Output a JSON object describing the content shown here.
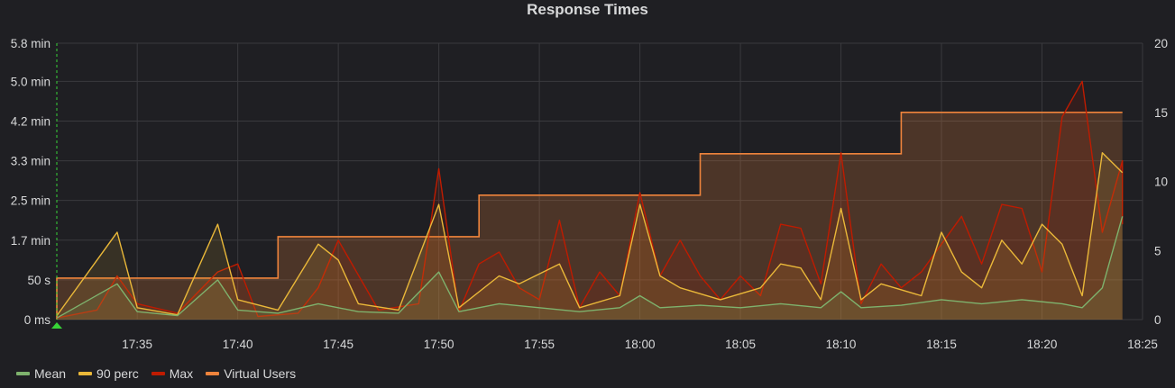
{
  "panel": {
    "title": "Response Times"
  },
  "legend": [
    {
      "label": "Mean",
      "color": "#7eb26d"
    },
    {
      "label": "90 perc",
      "color": "#eab839"
    },
    {
      "label": "Max",
      "color": "#bf1b00"
    },
    {
      "label": "Virtual Users",
      "color": "#ef843c"
    }
  ],
  "chart_data": {
    "type": "line",
    "title": "Response Times",
    "grid": true,
    "legend_position": "bottom-left",
    "x_range": [
      "17:31",
      "18:25"
    ],
    "x_tick_labels": [
      "17:35",
      "17:40",
      "17:45",
      "17:50",
      "17:55",
      "18:00",
      "18:05",
      "18:10",
      "18:15",
      "18:20",
      "18:25"
    ],
    "y_left": {
      "unit": "seconds",
      "range": [
        0,
        348
      ],
      "tick_labels": [
        "0 ms",
        "50 s",
        "1.7 min",
        "2.5 min",
        "3.3 min",
        "4.2 min",
        "5.0 min",
        "5.8 min"
      ],
      "tick_values": [
        0,
        50,
        100,
        150,
        200,
        250,
        300,
        348
      ]
    },
    "y_right": {
      "range": [
        0,
        20
      ],
      "tick_labels": [
        "0",
        "5",
        "10",
        "15",
        "20"
      ],
      "tick_values": [
        0,
        5,
        10,
        15,
        20
      ]
    },
    "series": [
      {
        "name": "Virtual Users",
        "color": "#ef843c",
        "axis": "right",
        "style": "step-area",
        "points": [
          [
            "17:31",
            0
          ],
          [
            "17:31",
            3
          ],
          [
            "17:42",
            3
          ],
          [
            "17:42",
            6
          ],
          [
            "17:52",
            6
          ],
          [
            "17:52",
            9
          ],
          [
            "18:03",
            9
          ],
          [
            "18:03",
            12
          ],
          [
            "18:13",
            12
          ],
          [
            "18:13",
            15
          ],
          [
            "18:24",
            15
          ]
        ]
      },
      {
        "name": "Max",
        "color": "#bf1b00",
        "axis": "left",
        "points": [
          [
            "17:31",
            2
          ],
          [
            "17:33",
            12
          ],
          [
            "17:34",
            55
          ],
          [
            "17:35",
            20
          ],
          [
            "17:37",
            8
          ],
          [
            "17:39",
            60
          ],
          [
            "17:40",
            70
          ],
          [
            "17:41",
            4
          ],
          [
            "17:43",
            8
          ],
          [
            "17:44",
            40
          ],
          [
            "17:45",
            100
          ],
          [
            "17:47",
            12
          ],
          [
            "17:49",
            20
          ],
          [
            "17:50",
            190
          ],
          [
            "17:51",
            10
          ],
          [
            "17:52",
            70
          ],
          [
            "17:53",
            85
          ],
          [
            "17:54",
            40
          ],
          [
            "17:55",
            25
          ],
          [
            "17:56",
            125
          ],
          [
            "17:57",
            15
          ],
          [
            "17:58",
            60
          ],
          [
            "17:59",
            30
          ],
          [
            "18:00",
            160
          ],
          [
            "18:01",
            55
          ],
          [
            "18:02",
            100
          ],
          [
            "18:03",
            55
          ],
          [
            "18:04",
            25
          ],
          [
            "18:05",
            55
          ],
          [
            "18:06",
            30
          ],
          [
            "18:07",
            120
          ],
          [
            "18:08",
            115
          ],
          [
            "18:09",
            45
          ],
          [
            "18:10",
            210
          ],
          [
            "18:11",
            20
          ],
          [
            "18:12",
            70
          ],
          [
            "18:13",
            40
          ],
          [
            "18:14",
            60
          ],
          [
            "18:15",
            95
          ],
          [
            "18:16",
            130
          ],
          [
            "18:17",
            70
          ],
          [
            "18:18",
            145
          ],
          [
            "18:19",
            140
          ],
          [
            "18:20",
            60
          ],
          [
            "18:21",
            255
          ],
          [
            "18:22",
            300
          ],
          [
            "18:23",
            110
          ],
          [
            "18:24",
            200
          ],
          [
            "18:24",
            120
          ]
        ]
      },
      {
        "name": "90 perc",
        "color": "#eab839",
        "axis": "left",
        "points": [
          [
            "17:31",
            5
          ],
          [
            "17:34",
            110
          ],
          [
            "17:35",
            15
          ],
          [
            "17:37",
            6
          ],
          [
            "17:39",
            120
          ],
          [
            "17:40",
            25
          ],
          [
            "17:42",
            12
          ],
          [
            "17:44",
            95
          ],
          [
            "17:45",
            75
          ],
          [
            "17:46",
            20
          ],
          [
            "17:48",
            12
          ],
          [
            "17:50",
            145
          ],
          [
            "17:51",
            15
          ],
          [
            "17:53",
            55
          ],
          [
            "17:54",
            45
          ],
          [
            "17:56",
            70
          ],
          [
            "17:57",
            15
          ],
          [
            "17:59",
            30
          ],
          [
            "18:00",
            145
          ],
          [
            "18:01",
            55
          ],
          [
            "18:02",
            40
          ],
          [
            "18:04",
            25
          ],
          [
            "18:06",
            40
          ],
          [
            "18:07",
            70
          ],
          [
            "18:08",
            65
          ],
          [
            "18:09",
            25
          ],
          [
            "18:10",
            140
          ],
          [
            "18:11",
            25
          ],
          [
            "18:12",
            45
          ],
          [
            "18:14",
            30
          ],
          [
            "18:15",
            110
          ],
          [
            "18:16",
            60
          ],
          [
            "18:17",
            40
          ],
          [
            "18:18",
            100
          ],
          [
            "18:19",
            70
          ],
          [
            "18:20",
            120
          ],
          [
            "18:21",
            95
          ],
          [
            "18:22",
            30
          ],
          [
            "18:23",
            210
          ],
          [
            "18:24",
            185
          ]
        ]
      },
      {
        "name": "Mean",
        "color": "#7eb26d",
        "axis": "left",
        "points": [
          [
            "17:31",
            2
          ],
          [
            "17:34",
            45
          ],
          [
            "17:35",
            10
          ],
          [
            "17:37",
            5
          ],
          [
            "17:39",
            50
          ],
          [
            "17:40",
            12
          ],
          [
            "17:42",
            8
          ],
          [
            "17:44",
            20
          ],
          [
            "17:46",
            10
          ],
          [
            "17:48",
            8
          ],
          [
            "17:50",
            60
          ],
          [
            "17:51",
            10
          ],
          [
            "17:53",
            20
          ],
          [
            "17:55",
            15
          ],
          [
            "17:57",
            10
          ],
          [
            "17:59",
            15
          ],
          [
            "18:00",
            30
          ],
          [
            "18:01",
            15
          ],
          [
            "18:03",
            18
          ],
          [
            "18:05",
            15
          ],
          [
            "18:07",
            20
          ],
          [
            "18:09",
            15
          ],
          [
            "18:10",
            35
          ],
          [
            "18:11",
            15
          ],
          [
            "18:13",
            18
          ],
          [
            "18:15",
            25
          ],
          [
            "18:17",
            20
          ],
          [
            "18:19",
            25
          ],
          [
            "18:21",
            20
          ],
          [
            "18:22",
            15
          ],
          [
            "18:23",
            40
          ],
          [
            "18:24",
            130
          ]
        ]
      }
    ]
  }
}
